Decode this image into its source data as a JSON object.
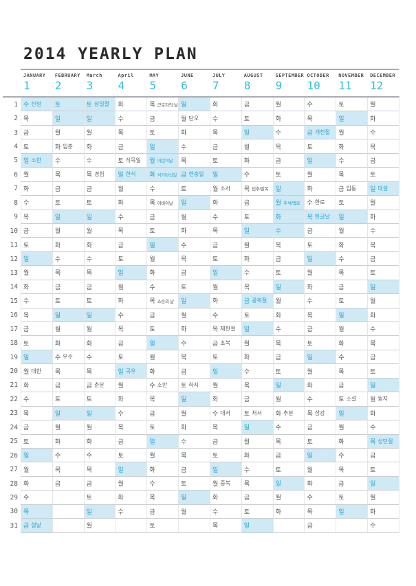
{
  "title": "2014 YEARLY PLAN",
  "colors": {
    "accent": "#2fbfd4",
    "highlight_bg": "#cfe9f5",
    "highlight_text": "#2aa3cd",
    "text": "#595959"
  },
  "rows": [
    "1",
    "2",
    "3",
    "4",
    "5",
    "6",
    "7",
    "8",
    "9",
    "10",
    "11",
    "12",
    "13",
    "14",
    "15",
    "16",
    "17",
    "18",
    "19",
    "20",
    "21",
    "22",
    "23",
    "24",
    "25",
    "26",
    "27",
    "28",
    "29",
    "30",
    "31"
  ],
  "months": [
    {
      "n": "JANUARY",
      "num": "1",
      "days": [
        {
          "w": "수",
          "t": "신정",
          "h": 1
        },
        {
          "w": "목"
        },
        {
          "w": "금"
        },
        {
          "w": "토"
        },
        {
          "w": "일",
          "t": "소한",
          "h": 1
        },
        {
          "w": "월"
        },
        {
          "w": "화"
        },
        {
          "w": "수"
        },
        {
          "w": "목"
        },
        {
          "w": "금"
        },
        {
          "w": "토"
        },
        {
          "w": "일",
          "h": 1
        },
        {
          "w": "월"
        },
        {
          "w": "화"
        },
        {
          "w": "수"
        },
        {
          "w": "목"
        },
        {
          "w": "금"
        },
        {
          "w": "토"
        },
        {
          "w": "일",
          "h": 1
        },
        {
          "w": "월",
          "t": "대한"
        },
        {
          "w": "화"
        },
        {
          "w": "수"
        },
        {
          "w": "목"
        },
        {
          "w": "금"
        },
        {
          "w": "토"
        },
        {
          "w": "일",
          "h": 1
        },
        {
          "w": "월"
        },
        {
          "w": "화"
        },
        {
          "w": "수"
        },
        {
          "w": "목",
          "h": 1
        },
        {
          "w": "금",
          "t": "설날",
          "h": 1
        }
      ]
    },
    {
      "n": "FEBRUARY",
      "num": "2",
      "days": [
        {
          "w": "토",
          "h": 1
        },
        {
          "w": "일",
          "h": 1
        },
        {
          "w": "월"
        },
        {
          "w": "화",
          "t": "입춘"
        },
        {
          "w": "수"
        },
        {
          "w": "목"
        },
        {
          "w": "금"
        },
        {
          "w": "토"
        },
        {
          "w": "일",
          "h": 1
        },
        {
          "w": "월"
        },
        {
          "w": "화"
        },
        {
          "w": "수"
        },
        {
          "w": "목"
        },
        {
          "w": "금"
        },
        {
          "w": "토"
        },
        {
          "w": "일",
          "h": 1
        },
        {
          "w": "월"
        },
        {
          "w": "화"
        },
        {
          "w": "수",
          "t": "우수"
        },
        {
          "w": "목"
        },
        {
          "w": "금"
        },
        {
          "w": "토"
        },
        {
          "w": "일",
          "h": 1
        },
        {
          "w": "월"
        },
        {
          "w": "화"
        },
        {
          "w": "수"
        },
        {
          "w": "목"
        },
        {
          "w": "금"
        },
        null,
        null,
        null
      ]
    },
    {
      "n": "March",
      "num": "3",
      "days": [
        {
          "w": "토",
          "t": "삼일절",
          "h": 1
        },
        {
          "w": "일",
          "h": 1
        },
        {
          "w": "월"
        },
        {
          "w": "화"
        },
        {
          "w": "수"
        },
        {
          "w": "목",
          "t": "경칩"
        },
        {
          "w": "금"
        },
        {
          "w": "토"
        },
        {
          "w": "일",
          "h": 1
        },
        {
          "w": "월"
        },
        {
          "w": "화"
        },
        {
          "w": "수"
        },
        {
          "w": "목"
        },
        {
          "w": "금"
        },
        {
          "w": "토"
        },
        {
          "w": "일",
          "h": 1
        },
        {
          "w": "월"
        },
        {
          "w": "화"
        },
        {
          "w": "수"
        },
        {
          "w": "목"
        },
        {
          "w": "금",
          "t": "춘분"
        },
        {
          "w": "토"
        },
        {
          "w": "일",
          "h": 1
        },
        {
          "w": "월"
        },
        {
          "w": "화"
        },
        {
          "w": "수"
        },
        {
          "w": "목"
        },
        {
          "w": "금"
        },
        {
          "w": "토"
        },
        {
          "w": "일",
          "h": 1
        },
        {
          "w": "월"
        }
      ]
    },
    {
      "n": "April",
      "num": "4",
      "days": [
        {
          "w": "화"
        },
        {
          "w": "수"
        },
        {
          "w": "목"
        },
        {
          "w": "금"
        },
        {
          "w": "토",
          "t": "식목일"
        },
        {
          "w": "일",
          "t": "한식",
          "h": 1
        },
        {
          "w": "월"
        },
        {
          "w": "화"
        },
        {
          "w": "수"
        },
        {
          "w": "목"
        },
        {
          "w": "금"
        },
        {
          "w": "토"
        },
        {
          "w": "일",
          "h": 1
        },
        {
          "w": "월"
        },
        {
          "w": "화"
        },
        {
          "w": "수"
        },
        {
          "w": "목"
        },
        {
          "w": "금"
        },
        {
          "w": "토"
        },
        {
          "w": "일",
          "t": "곡우",
          "h": 1
        },
        {
          "w": "월"
        },
        {
          "w": "화"
        },
        {
          "w": "수"
        },
        {
          "w": "목"
        },
        {
          "w": "금"
        },
        {
          "w": "토"
        },
        {
          "w": "일",
          "h": 1
        },
        {
          "w": "월"
        },
        {
          "w": "화"
        },
        {
          "w": "수"
        },
        null
      ]
    },
    {
      "n": "MAY",
      "num": "5",
      "days": [
        {
          "w": "목",
          "t": "근로자의 날"
        },
        {
          "w": "금"
        },
        {
          "w": "토"
        },
        {
          "w": "일",
          "h": 1
        },
        {
          "w": "월",
          "t": "어린이날",
          "h": 1
        },
        {
          "w": "화",
          "t": "석가탄신일",
          "h": 1
        },
        {
          "w": "수"
        },
        {
          "w": "목",
          "t": "어버이날"
        },
        {
          "w": "금"
        },
        {
          "w": "토"
        },
        {
          "w": "일",
          "h": 1
        },
        {
          "w": "월"
        },
        {
          "w": "화"
        },
        {
          "w": "수"
        },
        {
          "w": "목",
          "t": "스승의 날"
        },
        {
          "w": "금"
        },
        {
          "w": "토"
        },
        {
          "w": "일",
          "h": 1
        },
        {
          "w": "월"
        },
        {
          "w": "화"
        },
        {
          "w": "수",
          "t": "소만"
        },
        {
          "w": "목"
        },
        {
          "w": "금"
        },
        {
          "w": "토"
        },
        {
          "w": "일",
          "h": 1
        },
        {
          "w": "월"
        },
        {
          "w": "화"
        },
        {
          "w": "수"
        },
        {
          "w": "목"
        },
        {
          "w": "금"
        },
        {
          "w": "토"
        }
      ]
    },
    {
      "n": "JUNE",
      "num": "6",
      "days": [
        {
          "w": "일",
          "h": 1
        },
        {
          "w": "월",
          "t": "단오"
        },
        {
          "w": "화"
        },
        {
          "w": "수"
        },
        {
          "w": "목"
        },
        {
          "w": "금",
          "t": "현충일",
          "h": 1
        },
        {
          "w": "토"
        },
        {
          "w": "일",
          "h": 1
        },
        {
          "w": "월"
        },
        {
          "w": "화"
        },
        {
          "w": "수"
        },
        {
          "w": "목"
        },
        {
          "w": "금"
        },
        {
          "w": "토"
        },
        {
          "w": "일",
          "h": 1
        },
        {
          "w": "월"
        },
        {
          "w": "화"
        },
        {
          "w": "수"
        },
        {
          "w": "목"
        },
        {
          "w": "금"
        },
        {
          "w": "토",
          "t": "하지"
        },
        {
          "w": "일",
          "h": 1
        },
        {
          "w": "월"
        },
        {
          "w": "화"
        },
        {
          "w": "수"
        },
        {
          "w": "목"
        },
        {
          "w": "금"
        },
        {
          "w": "토"
        },
        {
          "w": "일",
          "h": 1
        },
        {
          "w": "월"
        },
        null
      ]
    },
    {
      "n": "JULY",
      "num": "7",
      "days": [
        {
          "w": "화"
        },
        {
          "w": "수"
        },
        {
          "w": "목"
        },
        {
          "w": "금"
        },
        {
          "w": "토"
        },
        {
          "w": "일",
          "h": 1
        },
        {
          "w": "월",
          "t": "소서"
        },
        {
          "w": "화"
        },
        {
          "w": "수"
        },
        {
          "w": "목"
        },
        {
          "w": "금"
        },
        {
          "w": "토"
        },
        {
          "w": "일",
          "h": 1
        },
        {
          "w": "월"
        },
        {
          "w": "화"
        },
        {
          "w": "수"
        },
        {
          "w": "목",
          "t": "제헌절"
        },
        {
          "w": "금",
          "t": "초복"
        },
        {
          "w": "토"
        },
        {
          "w": "일",
          "h": 1
        },
        {
          "w": "월"
        },
        {
          "w": "화"
        },
        {
          "w": "수",
          "t": "대서"
        },
        {
          "w": "목"
        },
        {
          "w": "금"
        },
        {
          "w": "토"
        },
        {
          "w": "일",
          "h": 1
        },
        {
          "w": "월",
          "t": "중복"
        },
        {
          "w": "화"
        },
        {
          "w": "수"
        },
        {
          "w": "목"
        }
      ]
    },
    {
      "n": "AUGUST",
      "num": "8",
      "days": [
        {
          "w": "금"
        },
        {
          "w": "토"
        },
        {
          "w": "일",
          "h": 1
        },
        {
          "w": "월"
        },
        {
          "w": "화"
        },
        {
          "w": "수"
        },
        {
          "w": "목",
          "t": "입추/말복"
        },
        {
          "w": "금"
        },
        {
          "w": "토"
        },
        {
          "w": "일",
          "h": 1
        },
        {
          "w": "월"
        },
        {
          "w": "화"
        },
        {
          "w": "수"
        },
        {
          "w": "목"
        },
        {
          "w": "금",
          "t": "광복절",
          "h": 1
        },
        {
          "w": "토"
        },
        {
          "w": "일",
          "h": 1
        },
        {
          "w": "월"
        },
        {
          "w": "화"
        },
        {
          "w": "수"
        },
        {
          "w": "목"
        },
        {
          "w": "금"
        },
        {
          "w": "토",
          "t": "처서"
        },
        {
          "w": "일",
          "h": 1
        },
        {
          "w": "월"
        },
        {
          "w": "화"
        },
        {
          "w": "수"
        },
        {
          "w": "목"
        },
        {
          "w": "금"
        },
        {
          "w": "토"
        },
        {
          "w": "일",
          "h": 1
        }
      ]
    },
    {
      "n": "SEPTEMBER",
      "num": "9",
      "days": [
        {
          "w": "월"
        },
        {
          "w": "화"
        },
        {
          "w": "수"
        },
        {
          "w": "목"
        },
        {
          "w": "금"
        },
        {
          "w": "토"
        },
        {
          "w": "일",
          "h": 1
        },
        {
          "w": "월",
          "t": "추석/백로",
          "h": 1
        },
        {
          "w": "화",
          "h": 1
        },
        {
          "w": "수",
          "h": 1
        },
        {
          "w": "목"
        },
        {
          "w": "금"
        },
        {
          "w": "토"
        },
        {
          "w": "일",
          "h": 1
        },
        {
          "w": "월"
        },
        {
          "w": "화"
        },
        {
          "w": "수"
        },
        {
          "w": "목"
        },
        {
          "w": "금"
        },
        {
          "w": "토"
        },
        {
          "w": "일",
          "h": 1
        },
        {
          "w": "월"
        },
        {
          "w": "화",
          "t": "추분"
        },
        {
          "w": "수"
        },
        {
          "w": "목"
        },
        {
          "w": "금"
        },
        {
          "w": "토"
        },
        {
          "w": "일",
          "h": 1
        },
        {
          "w": "월"
        },
        {
          "w": "화"
        },
        null
      ]
    },
    {
      "n": "OCTOBER",
      "num": "10",
      "days": [
        {
          "w": "수"
        },
        {
          "w": "목"
        },
        {
          "w": "금",
          "t": "개천절",
          "h": 1
        },
        {
          "w": "토"
        },
        {
          "w": "일",
          "h": 1
        },
        {
          "w": "월"
        },
        {
          "w": "화"
        },
        {
          "w": "수",
          "t": "한로"
        },
        {
          "w": "목",
          "t": "한글날",
          "h": 1
        },
        {
          "w": "금"
        },
        {
          "w": "토"
        },
        {
          "w": "일",
          "h": 1
        },
        {
          "w": "월"
        },
        {
          "w": "화"
        },
        {
          "w": "수"
        },
        {
          "w": "목"
        },
        {
          "w": "금"
        },
        {
          "w": "토"
        },
        {
          "w": "일",
          "h": 1
        },
        {
          "w": "월"
        },
        {
          "w": "화"
        },
        {
          "w": "수"
        },
        {
          "w": "목",
          "t": "상강"
        },
        {
          "w": "금"
        },
        {
          "w": "토"
        },
        {
          "w": "일",
          "h": 1
        },
        {
          "w": "월"
        },
        {
          "w": "화"
        },
        {
          "w": "수"
        },
        {
          "w": "목"
        },
        {
          "w": "금"
        }
      ]
    },
    {
      "n": "NOVEMBER",
      "num": "11",
      "days": [
        {
          "w": "토"
        },
        {
          "w": "일",
          "h": 1
        },
        {
          "w": "월"
        },
        {
          "w": "화"
        },
        {
          "w": "수"
        },
        {
          "w": "목"
        },
        {
          "w": "금",
          "t": "입동"
        },
        {
          "w": "토"
        },
        {
          "w": "일",
          "h": 1
        },
        {
          "w": "월"
        },
        {
          "w": "화"
        },
        {
          "w": "수"
        },
        {
          "w": "목"
        },
        {
          "w": "금"
        },
        {
          "w": "토"
        },
        {
          "w": "일",
          "h": 1
        },
        {
          "w": "월"
        },
        {
          "w": "화"
        },
        {
          "w": "수"
        },
        {
          "w": "목"
        },
        {
          "w": "금"
        },
        {
          "w": "토",
          "t": "소설"
        },
        {
          "w": "일",
          "h": 1
        },
        {
          "w": "월"
        },
        {
          "w": "화"
        },
        {
          "w": "수"
        },
        {
          "w": "목"
        },
        {
          "w": "금"
        },
        {
          "w": "토"
        },
        {
          "w": "일",
          "h": 1
        },
        null
      ]
    },
    {
      "n": "DECEMBER",
      "num": "12",
      "days": [
        {
          "w": "월"
        },
        {
          "w": "화"
        },
        {
          "w": "수"
        },
        {
          "w": "목"
        },
        {
          "w": "금"
        },
        {
          "w": "토"
        },
        {
          "w": "일",
          "t": "대설",
          "h": 1
        },
        {
          "w": "월"
        },
        {
          "w": "화"
        },
        {
          "w": "수"
        },
        {
          "w": "목"
        },
        {
          "w": "금"
        },
        {
          "w": "토"
        },
        {
          "w": "일",
          "h": 1
        },
        {
          "w": "월"
        },
        {
          "w": "화"
        },
        {
          "w": "수"
        },
        {
          "w": "목"
        },
        {
          "w": "금"
        },
        {
          "w": "토"
        },
        {
          "w": "일",
          "h": 1
        },
        {
          "w": "월",
          "t": "동지"
        },
        {
          "w": "화"
        },
        {
          "w": "수"
        },
        {
          "w": "목",
          "t": "성탄절",
          "h": 1
        },
        {
          "w": "금"
        },
        {
          "w": "토"
        },
        {
          "w": "일",
          "h": 1
        },
        {
          "w": "월"
        },
        {
          "w": "화"
        },
        {
          "w": "수"
        }
      ]
    }
  ]
}
